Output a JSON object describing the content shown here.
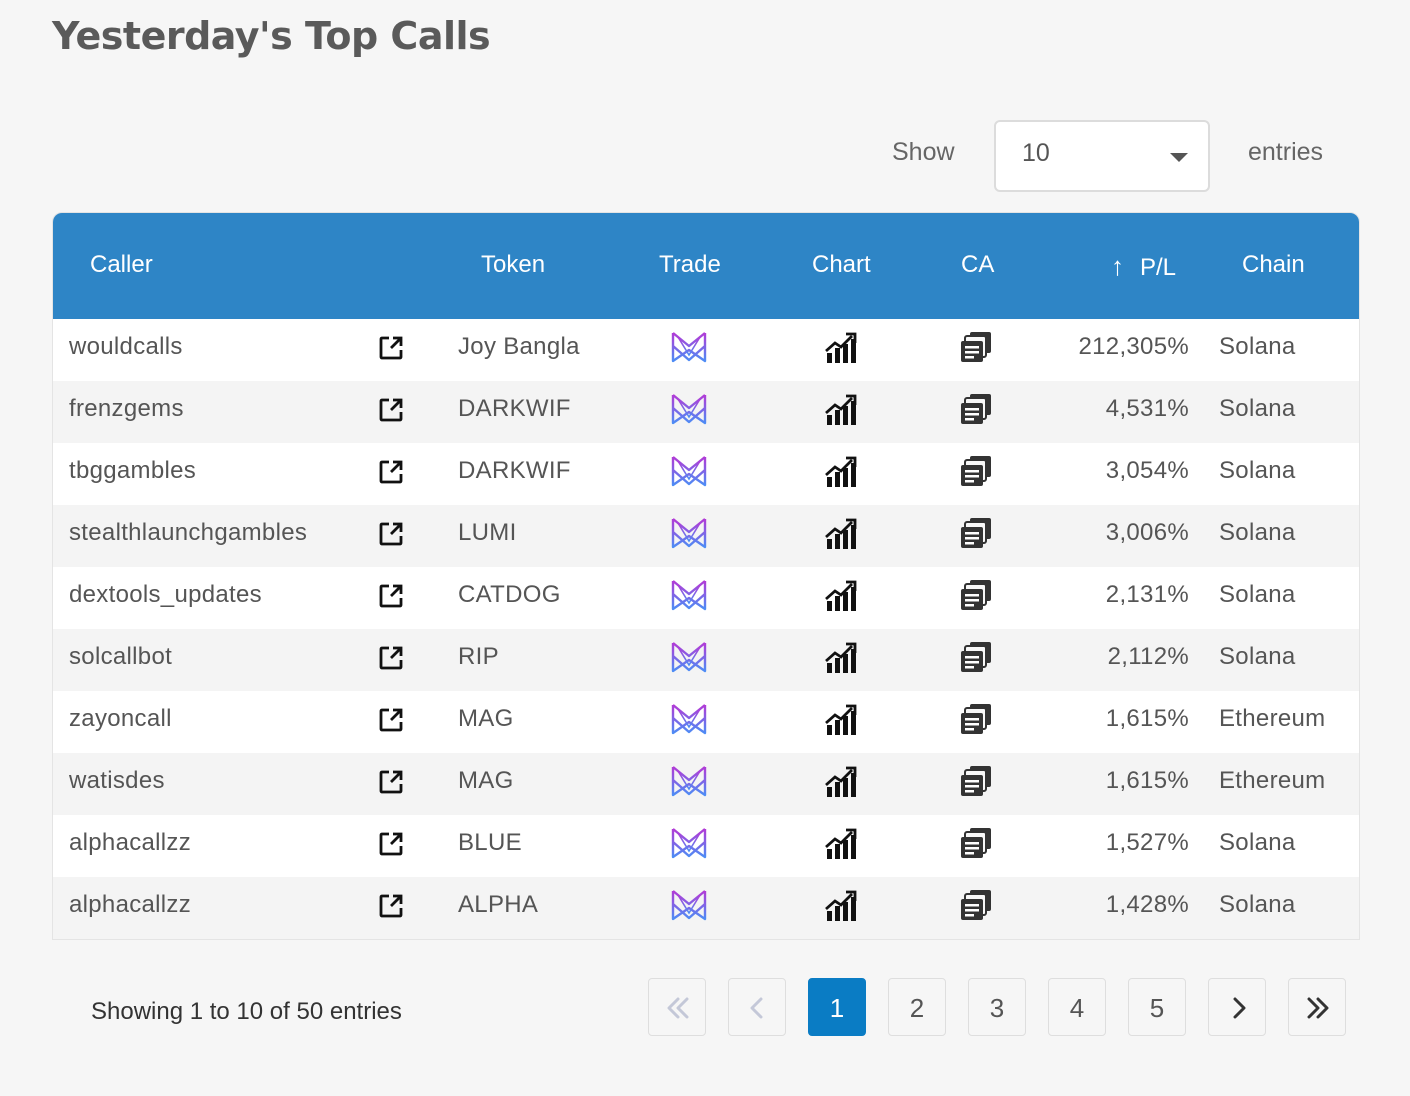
{
  "page": {
    "title": "Yesterday's Top Calls"
  },
  "length": {
    "show_label": "Show",
    "value": "10",
    "entries_label": "entries"
  },
  "table": {
    "headers": {
      "caller": "Caller",
      "token": "Token",
      "trade": "Trade",
      "chart": "Chart",
      "ca": "CA",
      "pl": "P/L",
      "chain": "Chain"
    },
    "sort_indicator": "↑",
    "rows": [
      {
        "caller": "wouldcalls",
        "token": "Joy Bangla",
        "pl": "212,305%",
        "chain": "Solana"
      },
      {
        "caller": "frenzgems",
        "token": "DARKWIF",
        "pl": "4,531%",
        "chain": "Solana"
      },
      {
        "caller": "tbggambles",
        "token": "DARKWIF",
        "pl": "3,054%",
        "chain": "Solana"
      },
      {
        "caller": "stealthlaunchgambles",
        "token": "LUMI",
        "pl": "3,006%",
        "chain": "Solana"
      },
      {
        "caller": "dextools_updates",
        "token": "CATDOG",
        "pl": "2,131%",
        "chain": "Solana"
      },
      {
        "caller": "solcallbot",
        "token": "RIP",
        "pl": "2,112%",
        "chain": "Solana"
      },
      {
        "caller": "zayoncall",
        "token": "MAG",
        "pl": "1,615%",
        "chain": "Ethereum"
      },
      {
        "caller": "watisdes",
        "token": "MAG",
        "pl": "1,615%",
        "chain": "Ethereum"
      },
      {
        "caller": "alphacallzz",
        "token": "BLUE",
        "pl": "1,527%",
        "chain": "Solana"
      },
      {
        "caller": "alphacallzz",
        "token": "ALPHA",
        "pl": "1,428%",
        "chain": "Solana"
      }
    ],
    "icons": {
      "caller_link": "external-link-icon",
      "trade": "trade-logo-icon",
      "chart": "chart-icon",
      "ca": "copy-icon"
    }
  },
  "info": "Showing 1 to 10 of 50 entries",
  "pagination": {
    "pages": [
      "1",
      "2",
      "3",
      "4",
      "5"
    ],
    "current": "1",
    "first_icon": "double-chevron-left-icon",
    "prev_icon": "chevron-left-icon",
    "next_icon": "chevron-right-icon",
    "last_icon": "double-chevron-right-icon"
  },
  "colors": {
    "header_bg": "#2e85c6",
    "active_page": "#0a7cc4",
    "trade_gradient": [
      "#b23bd6",
      "#4d8cf5"
    ]
  }
}
